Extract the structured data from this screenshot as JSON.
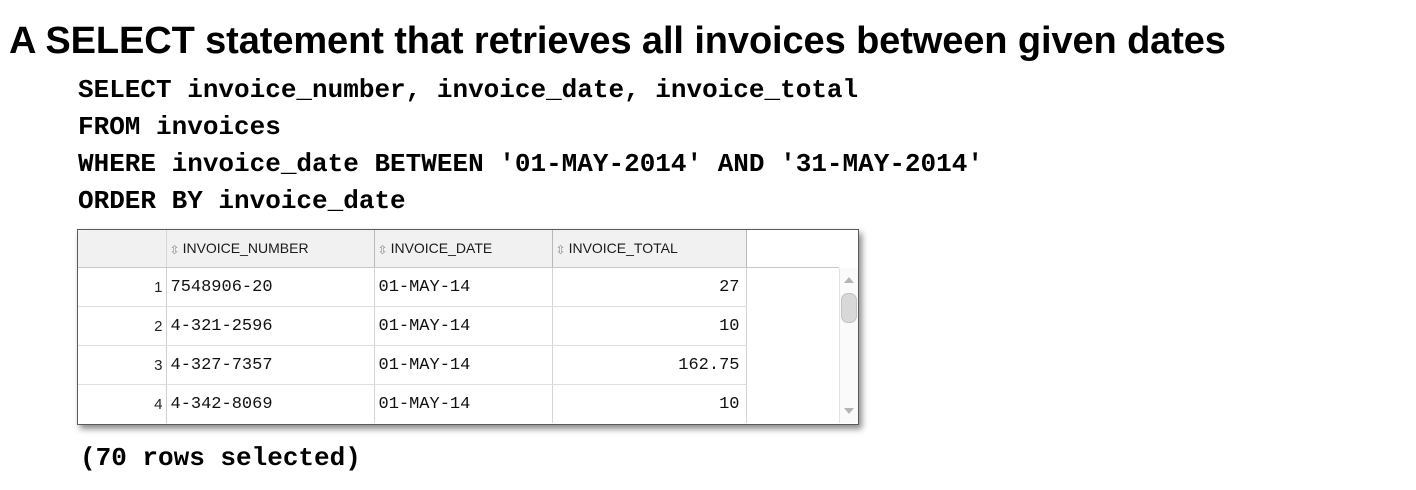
{
  "title": "A SELECT statement that retrieves all invoices between given dates",
  "sql": [
    "SELECT invoice_number, invoice_date, invoice_total",
    "FROM invoices",
    "WHERE invoice_date BETWEEN '01-MAY-2014' AND '31-MAY-2014'",
    "ORDER BY invoice_date"
  ],
  "grid": {
    "columns": [
      "INVOICE_NUMBER",
      "INVOICE_DATE",
      "INVOICE_TOTAL"
    ],
    "sort_icon": "sort-arrows-icon",
    "rows": [
      {
        "num": "1",
        "invoice_number": "7548906-20",
        "invoice_date": "01-MAY-14",
        "invoice_total": "27"
      },
      {
        "num": "2",
        "invoice_number": "4-321-2596",
        "invoice_date": "01-MAY-14",
        "invoice_total": "10"
      },
      {
        "num": "3",
        "invoice_number": "4-327-7357",
        "invoice_date": "01-MAY-14",
        "invoice_total": "162.75"
      },
      {
        "num": "4",
        "invoice_number": "4-342-8069",
        "invoice_date": "01-MAY-14",
        "invoice_total": "10"
      }
    ]
  },
  "footer": "(70 rows selected)"
}
